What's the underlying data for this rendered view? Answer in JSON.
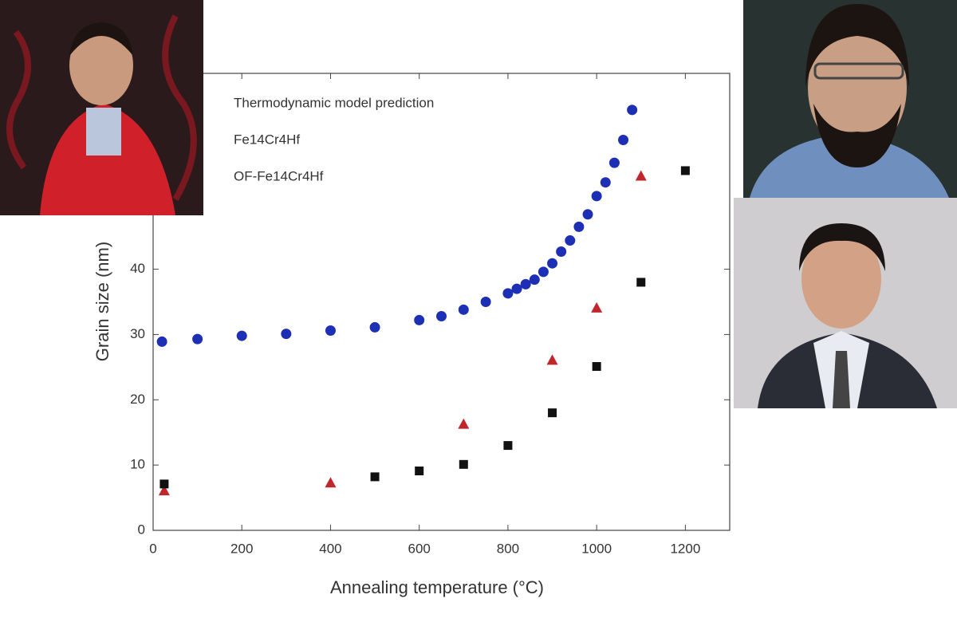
{
  "chart_data": {
    "type": "scatter",
    "xlabel": "Annealing temperature (°C)",
    "ylabel": "Grain size (nm)",
    "xlim": [
      0,
      1300
    ],
    "ylim": [
      0,
      70
    ],
    "xticks": [
      0,
      200,
      400,
      600,
      800,
      1000,
      1200
    ],
    "yticks": [
      0,
      10,
      20,
      30,
      40
    ],
    "series": [
      {
        "name": "Thermodynamic model prediction",
        "color": "#1c2fb5",
        "marker": "circle",
        "x": [
          20,
          100,
          200,
          300,
          400,
          500,
          600,
          650,
          700,
          750,
          800,
          820,
          840,
          860,
          880,
          900,
          920,
          940,
          960,
          980,
          1000,
          1020,
          1040,
          1060,
          1080
        ],
        "values": [
          28.9,
          29.3,
          29.8,
          30.1,
          30.6,
          31.1,
          32.2,
          32.8,
          33.8,
          35.0,
          36.3,
          37.0,
          37.7,
          38.4,
          39.6,
          40.9,
          42.7,
          44.4,
          46.5,
          48.4,
          51.2,
          53.3,
          56.3,
          59.8,
          64.4
        ]
      },
      {
        "name": "Fe14Cr4Hf",
        "color": "#c0272d",
        "marker": "triangle",
        "x": [
          25,
          400,
          700,
          900,
          1000,
          1100
        ],
        "values": [
          6.1,
          7.3,
          16.3,
          26.1,
          34.1,
          54.3
        ]
      },
      {
        "name": "OF-Fe14Cr4Hf",
        "color": "#111111",
        "marker": "square",
        "x": [
          25,
          500,
          600,
          700,
          800,
          900,
          1000,
          1100,
          1200
        ],
        "values": [
          7.1,
          8.2,
          9.1,
          10.1,
          13.0,
          18.0,
          25.1,
          38.0,
          55.1
        ]
      }
    ]
  }
}
